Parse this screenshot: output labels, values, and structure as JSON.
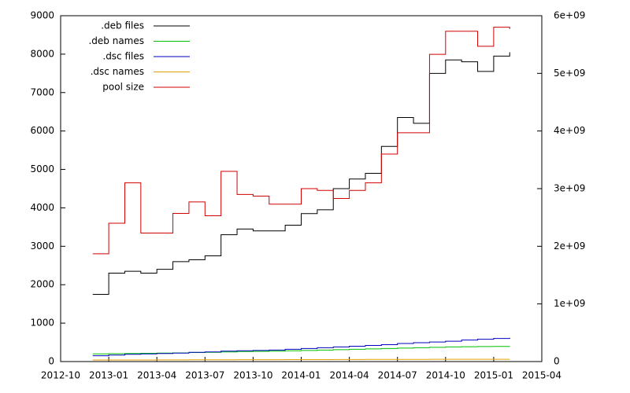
{
  "chart_data": {
    "type": "line",
    "x": [
      "2012-12",
      "2013-01",
      "2013-02",
      "2013-03",
      "2013-04",
      "2013-05",
      "2013-06",
      "2013-07",
      "2013-08",
      "2013-09",
      "2013-10",
      "2013-11",
      "2013-12",
      "2014-01",
      "2014-02",
      "2014-03",
      "2014-04",
      "2014-05",
      "2014-06",
      "2014-07",
      "2014-08",
      "2014-09",
      "2014-10",
      "2014-11",
      "2014-12",
      "2015-01",
      "2015-02"
    ],
    "series": [
      {
        "name": ".deb files",
        "color": "#000000",
        "values": [
          1750,
          2300,
          2350,
          2300,
          2400,
          2600,
          2650,
          2750,
          3300,
          3450,
          3400,
          3400,
          3550,
          3850,
          3950,
          4500,
          4750,
          4900,
          5600,
          6350,
          6200,
          7500,
          7850,
          7800,
          7550,
          7950,
          8050
        ]
      },
      {
        "name": ".deb names",
        "color": "#00c000",
        "values": [
          200,
          205,
          210,
          215,
          220,
          225,
          235,
          240,
          250,
          260,
          265,
          270,
          280,
          290,
          300,
          310,
          320,
          330,
          340,
          350,
          360,
          370,
          380,
          385,
          390,
          395,
          400
        ]
      },
      {
        "name": ".dsc files",
        "color": "#0000c0",
        "values": [
          150,
          170,
          190,
          200,
          210,
          220,
          240,
          250,
          270,
          280,
          290,
          300,
          320,
          340,
          360,
          380,
          400,
          420,
          440,
          470,
          490,
          510,
          530,
          560,
          580,
          600,
          620
        ]
      },
      {
        "name": ".dsc names",
        "color": "#e0a000",
        "values": [
          40,
          40,
          41,
          42,
          43,
          44,
          45,
          46,
          47,
          48,
          48,
          49,
          50,
          51,
          52,
          53,
          54,
          55,
          56,
          57,
          57,
          58,
          58,
          59,
          59,
          60,
          60
        ]
      },
      {
        "name": "pool size",
        "color": "#d00000",
        "axis": "y2",
        "values": [
          1870000000,
          2400000000,
          3100000000,
          2230000000,
          2230000000,
          2570000000,
          2770000000,
          2530000000,
          3300000000,
          2900000000,
          2870000000,
          2730000000,
          2730000000,
          3000000000,
          2970000000,
          2830000000,
          2970000000,
          3100000000,
          3600000000,
          3970000000,
          3970000000,
          5330000000,
          5730000000,
          5730000000,
          5470000000,
          5800000000,
          5770000000
        ]
      }
    ],
    "xlim": [
      "2012-10",
      "2015-04"
    ],
    "xticks": [
      "2012-10",
      "2013-01",
      "2013-04",
      "2013-07",
      "2013-10",
      "2014-01",
      "2014-04",
      "2014-07",
      "2014-10",
      "2015-01",
      "2015-04"
    ],
    "ylim": [
      0,
      9000
    ],
    "yticks": [
      0,
      1000,
      2000,
      3000,
      4000,
      5000,
      6000,
      7000,
      8000,
      9000
    ],
    "y2lim": [
      0,
      6000000000
    ],
    "y2ticks": [
      0,
      {
        "value": 1000000000,
        "label": "1e+09"
      },
      {
        "value": 2000000000,
        "label": "2e+09"
      },
      {
        "value": 3000000000,
        "label": "3e+09"
      },
      {
        "value": 4000000000,
        "label": "4e+09"
      },
      {
        "value": 5000000000,
        "label": "5e+09"
      },
      {
        "value": 6000000000,
        "label": "6e+09"
      }
    ],
    "legend": "top-left"
  }
}
